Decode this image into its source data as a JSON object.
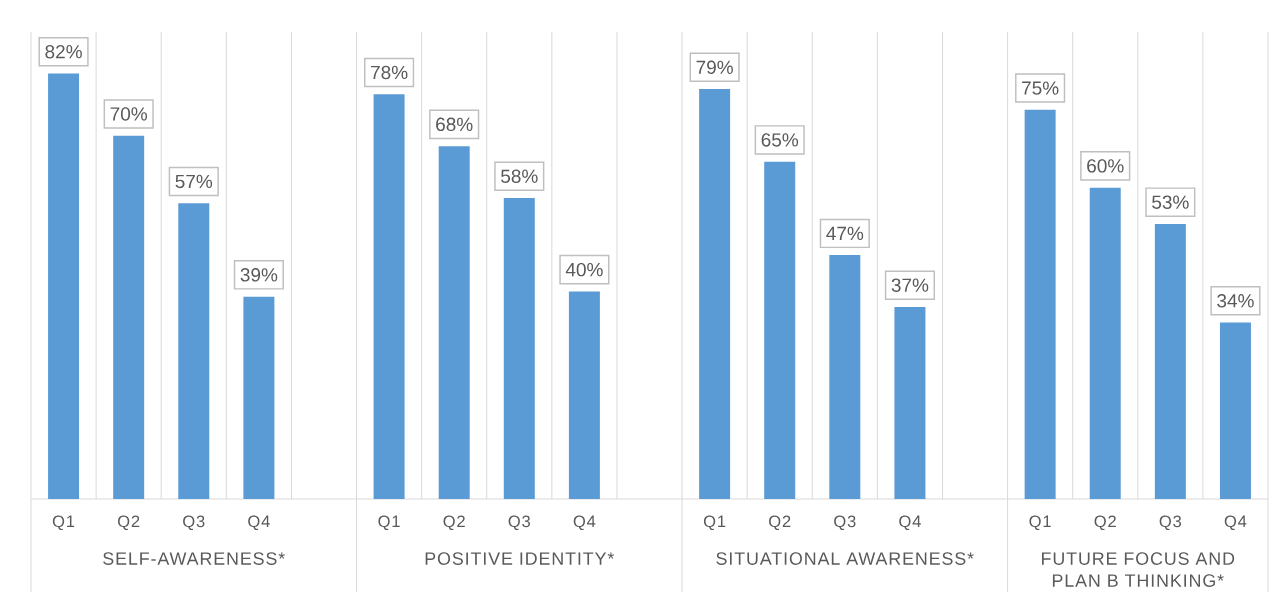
{
  "chart_data": {
    "type": "bar",
    "categories": [
      "Q1",
      "Q2",
      "Q3",
      "Q4",
      null,
      "Q1",
      "Q2",
      "Q3",
      "Q4",
      null,
      "Q1",
      "Q2",
      "Q3",
      "Q4",
      null,
      "Q1",
      "Q2",
      "Q3",
      "Q4"
    ],
    "values": [
      82,
      70,
      57,
      39,
      null,
      78,
      68,
      58,
      40,
      null,
      79,
      65,
      47,
      37,
      null,
      75,
      60,
      53,
      34
    ],
    "value_labels": [
      "82%",
      "70%",
      "57%",
      "39%",
      null,
      "78%",
      "68%",
      "58%",
      "40%",
      null,
      "79%",
      "65%",
      "47%",
      "37%",
      null,
      "75%",
      "60%",
      "53%",
      "34%"
    ],
    "color": "#5b9bd5",
    "ylim": [
      0,
      90
    ],
    "tick_labels": "x",
    "grid": "x",
    "annotations": [
      "SELF-AWARENESS*",
      "POSITIVE IDENTITY*",
      "SITUATIONAL AWARENESS*",
      "FUTURE FOCUS AND PLAN B THINKING*"
    ]
  }
}
